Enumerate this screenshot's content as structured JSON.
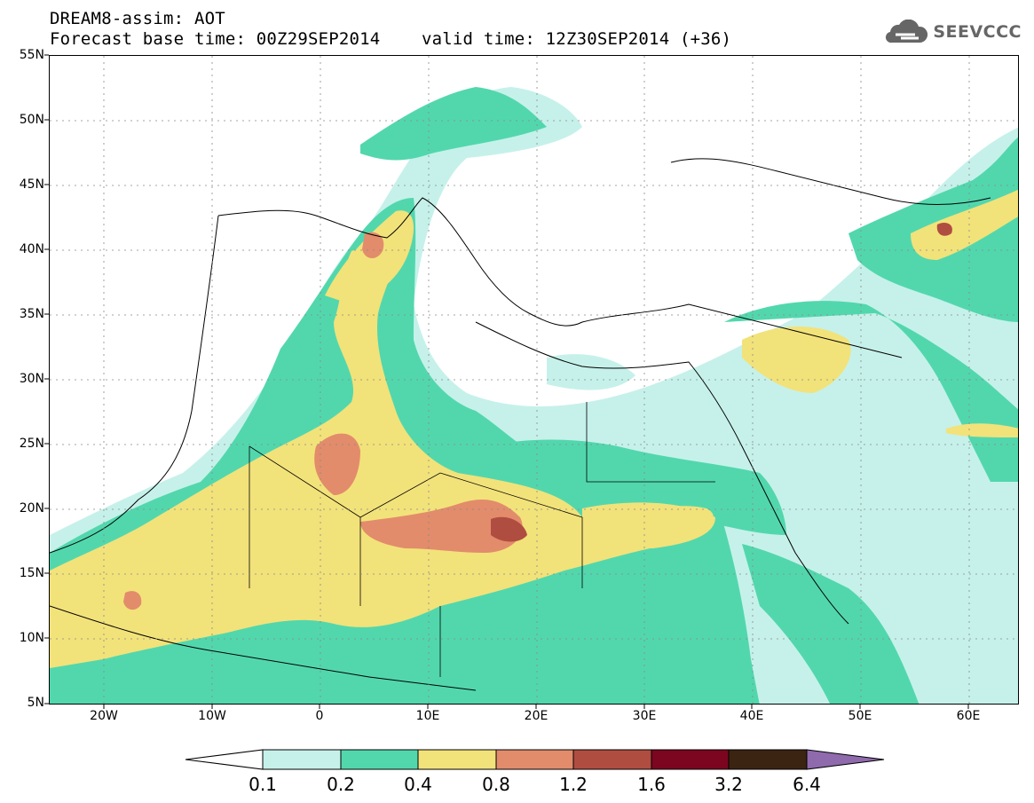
{
  "header": {
    "title_line1": "DREAM8-assim: AOT",
    "title_line2": "Forecast base time: 00Z29SEP2014    valid time: 12Z30SEP2014 (+36)",
    "logo_text": "SEEVCCC"
  },
  "axes": {
    "lat_labels": [
      "55N",
      "50N",
      "45N",
      "40N",
      "35N",
      "30N",
      "25N",
      "20N",
      "15N",
      "10N",
      "5N"
    ],
    "lon_labels": [
      "20W",
      "10W",
      "0",
      "10E",
      "20E",
      "30E",
      "40E",
      "50E",
      "60E"
    ],
    "lat_range": [
      5,
      55
    ],
    "lon_range": [
      -25,
      65
    ]
  },
  "legend": {
    "levels": [
      "0.1",
      "0.2",
      "0.4",
      "0.8",
      "1.2",
      "1.6",
      "3.2",
      "6.4"
    ],
    "colors": [
      "#c6f1ea",
      "#52d7ad",
      "#f2e27a",
      "#e28c6b",
      "#b04d41",
      "#7c0520",
      "#3b2412",
      "#8f6aad"
    ],
    "under_color": "#ffffff"
  },
  "colors": {
    "c1": "#c6f1ea",
    "c2": "#52d7ad",
    "c3": "#f2e27a",
    "c4": "#e28c6b",
    "c5": "#b04d41"
  }
}
